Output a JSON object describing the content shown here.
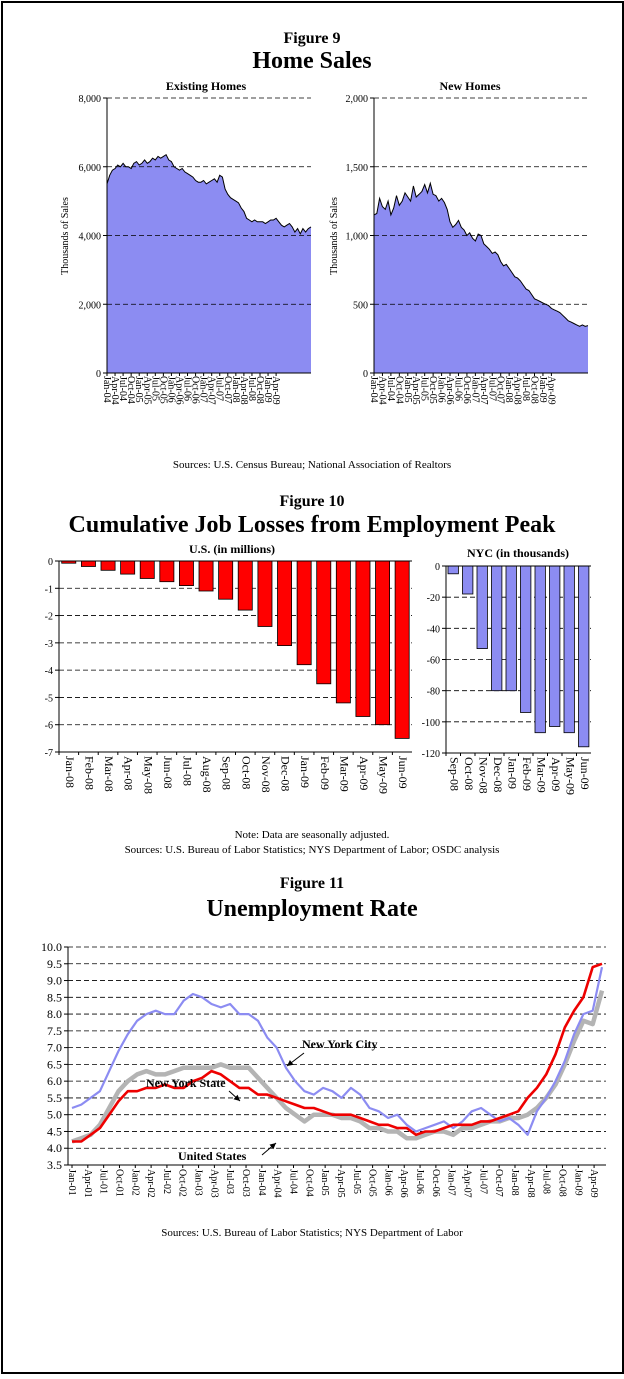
{
  "colors": {
    "blue_fill": "#8c8cf2",
    "red_bar": "#ff0000",
    "blue_bar": "#8c8cf2",
    "nyc_line": "#8c8cf2",
    "nys_line": "#b4b4b4",
    "us_line": "#ee0000"
  },
  "figures": {
    "fig9": {
      "label": "Figure 9",
      "title": "Home Sales",
      "sources": "Sources: U.S. Census Bureau; National Association of Realtors"
    },
    "fig10": {
      "label": "Figure 10",
      "title": "Cumulative Job Losses from Employment Peak",
      "note": "Note: Data are seasonally adjusted.",
      "sources": "Sources: U.S. Bureau of Labor Statistics; NYS Department of Labor; OSDC analysis"
    },
    "fig11": {
      "label": "Figure 11",
      "title": "Unemployment Rate",
      "sources": "Sources: U.S. Bureau of Labor Statistics; NYS Department of Labor"
    }
  },
  "chart_data": [
    {
      "id": "existing",
      "type": "area",
      "title": "Existing Homes",
      "ylabel": "Thousands of Sales",
      "ylim": [
        0,
        8000
      ],
      "yticks": [
        0,
        2000,
        4000,
        6000,
        8000
      ],
      "ytick_labels": [
        "0",
        "2,000",
        "4,000",
        "6,000",
        "8,000"
      ],
      "xtick_labels": [
        "Jan-04",
        "Apr-04",
        "Jul-04",
        "Oct-04",
        "Jan-05",
        "Apr-05",
        "Jul-05",
        "Oct-05",
        "Jan-06",
        "Apr-06",
        "Jul-06",
        "Oct-06",
        "Jan-07",
        "Apr-07",
        "Jul-07",
        "Oct-07",
        "Jan-08",
        "Apr-08",
        "Jul-08",
        "Oct-08",
        "Jan-09",
        "Apr-09"
      ],
      "grid": "horizontal dashed",
      "values": [
        5500,
        5750,
        5900,
        5950,
        6050,
        6000,
        6100,
        6000,
        6000,
        5950,
        6100,
        6150,
        6050,
        6100,
        6200,
        6100,
        6150,
        6250,
        6200,
        6300,
        6250,
        6300,
        6350,
        6200,
        6150,
        6000,
        5950,
        5900,
        5950,
        5850,
        5800,
        5750,
        5700,
        5600,
        5550,
        5550,
        5600,
        5500,
        5550,
        5600,
        5650,
        5550,
        5750,
        5700,
        5350,
        5200,
        5100,
        5050,
        5000,
        4950,
        4800,
        4700,
        4500,
        4450,
        4400,
        4450,
        4400,
        4400,
        4400,
        4350,
        4400,
        4450,
        4450,
        4500,
        4400,
        4300,
        4250,
        4300,
        4350,
        4250,
        4100,
        4200,
        4050,
        4200,
        4100,
        4200,
        4250
      ]
    },
    {
      "id": "new",
      "type": "area",
      "title": "New Homes",
      "ylabel": "Thousands of Sales",
      "ylim": [
        0,
        2000
      ],
      "yticks": [
        0,
        500,
        1000,
        1500,
        2000
      ],
      "ytick_labels": [
        "0",
        "500",
        "1,000",
        "1,500",
        "2,000"
      ],
      "xtick_labels": [
        "Jan-04",
        "Apr-04",
        "Jul-04",
        "Oct-04",
        "Jan-05",
        "Apr-05",
        "Jul-05",
        "Oct-05",
        "Jan-06",
        "Apr-06",
        "Jul-06",
        "Oct-06",
        "Jan-07",
        "Apr-07",
        "Jul-07",
        "Oct-07",
        "Jan-08",
        "Apr-08",
        "Jul-08",
        "Oct-08",
        "Jan-09",
        "Apr-09"
      ],
      "grid": "horizontal dashed",
      "values": [
        1150,
        1160,
        1270,
        1210,
        1190,
        1250,
        1150,
        1200,
        1290,
        1220,
        1250,
        1310,
        1280,
        1250,
        1360,
        1280,
        1300,
        1320,
        1370,
        1310,
        1380,
        1300,
        1290,
        1250,
        1270,
        1240,
        1190,
        1100,
        1060,
        1080,
        1110,
        1060,
        1040,
        1000,
        1020,
        980,
        960,
        1010,
        1000,
        940,
        920,
        900,
        870,
        880,
        860,
        810,
        780,
        790,
        760,
        730,
        700,
        690,
        670,
        640,
        610,
        600,
        570,
        540,
        530,
        520,
        510,
        500,
        490,
        470,
        460,
        450,
        440,
        420,
        400,
        380,
        370,
        360,
        350,
        340,
        350,
        340,
        345
      ]
    },
    {
      "id": "us_jobs",
      "type": "bar",
      "title": "U.S. (in millions)",
      "ylim": [
        -7,
        0
      ],
      "yticks": [
        0,
        -1,
        -2,
        -3,
        -4,
        -5,
        -6,
        -7
      ],
      "ytick_labels": [
        "0",
        "-1",
        "-2",
        "-3",
        "-4",
        "-5",
        "-6",
        "-7"
      ],
      "categories": [
        "Jan-08",
        "Feb-08",
        "Mar-08",
        "Apr-08",
        "May-08",
        "Jun-08",
        "Jul-08",
        "Aug-08",
        "Sep-08",
        "Oct-08",
        "Nov-08",
        "Dec-08",
        "Jan-09",
        "Feb-09",
        "Mar-09",
        "Apr-09",
        "May-09",
        "Jun-09"
      ],
      "values": [
        -0.08,
        -0.2,
        -0.34,
        -0.48,
        -0.64,
        -0.76,
        -0.9,
        -1.1,
        -1.4,
        -1.8,
        -2.4,
        -3.1,
        -3.8,
        -4.5,
        -5.2,
        -5.7,
        -6.0,
        -6.5
      ]
    },
    {
      "id": "nyc_jobs",
      "type": "bar",
      "title": "NYC (in thousands)",
      "ylim": [
        -120,
        0
      ],
      "yticks": [
        0,
        -20,
        -40,
        -60,
        -80,
        -100,
        -120
      ],
      "ytick_labels": [
        "0",
        "-20",
        "-40",
        "-60",
        "-80",
        "-100",
        "-120"
      ],
      "categories": [
        "Sep-08",
        "Oct-08",
        "Nov-08",
        "Dec-08",
        "Jan-09",
        "Feb-09",
        "Mar-09",
        "Apr-09",
        "May-09",
        "Jun-09"
      ],
      "values": [
        -5,
        -18,
        -53,
        -80,
        -80,
        -94,
        -107,
        -103,
        -107,
        -116
      ]
    },
    {
      "id": "unemployment",
      "type": "line",
      "ylim": [
        3.5,
        10.0
      ],
      "yticks": [
        3.5,
        4.0,
        4.5,
        5.0,
        5.5,
        6.0,
        6.5,
        7.0,
        7.5,
        8.0,
        8.5,
        9.0,
        9.5,
        10.0
      ],
      "ytick_labels": [
        "3.5",
        "4.0",
        "4.5",
        "5.0",
        "5.5",
        "6.0",
        "6.5",
        "7.0",
        "7.5",
        "8.0",
        "8.5",
        "9.0",
        "9.5",
        "10.0"
      ],
      "xtick_labels": [
        "Jan-01",
        "Apr-01",
        "Jul-01",
        "Oct-01",
        "Jan-02",
        "Apr-02",
        "Jul-02",
        "Oct-02",
        "Jan-03",
        "Apr-03",
        "Jul-03",
        "Oct-03",
        "Jan-04",
        "Apr-04",
        "Jul-04",
        "Oct-04",
        "Jan-05",
        "Apr-05",
        "Jul-05",
        "Oct-05",
        "Jan-06",
        "Apr-06",
        "Jul-06",
        "Oct-06",
        "Jan-07",
        "Apr-07",
        "Jul-07",
        "Oct-07",
        "Jan-08",
        "Apr-08",
        "Jul-08",
        "Oct-08",
        "Jan-09",
        "Apr-09"
      ],
      "series": [
        {
          "name": "New York City",
          "values": [
            5.2,
            5.3,
            5.5,
            5.7,
            6.3,
            6.9,
            7.4,
            7.8,
            8.0,
            8.1,
            8.0,
            8.0,
            8.4,
            8.6,
            8.5,
            8.3,
            8.2,
            8.3,
            8.0,
            8.0,
            7.8,
            7.3,
            7.0,
            6.4,
            6.0,
            5.7,
            5.6,
            5.8,
            5.7,
            5.5,
            5.8,
            5.6,
            5.2,
            5.1,
            4.9,
            5.0,
            4.7,
            4.5,
            4.6,
            4.7,
            4.8,
            4.6,
            4.8,
            5.1,
            5.2,
            5.0,
            4.8,
            4.9,
            4.7,
            4.4,
            5.1,
            5.5,
            6.0,
            6.6,
            7.4,
            8.0,
            8.1,
            9.4
          ]
        },
        {
          "name": "New York State",
          "values": [
            4.2,
            4.3,
            4.4,
            4.7,
            5.2,
            5.7,
            6.0,
            6.2,
            6.3,
            6.2,
            6.2,
            6.3,
            6.4,
            6.4,
            6.4,
            6.4,
            6.5,
            6.4,
            6.4,
            6.4,
            6.1,
            5.8,
            5.5,
            5.2,
            5.0,
            4.8,
            5.0,
            5.0,
            5.0,
            4.9,
            4.9,
            4.8,
            4.6,
            4.6,
            4.5,
            4.5,
            4.3,
            4.3,
            4.4,
            4.5,
            4.5,
            4.4,
            4.6,
            4.6,
            4.7,
            4.8,
            4.8,
            4.9,
            4.9,
            5.0,
            5.2,
            5.5,
            5.9,
            6.5,
            7.2,
            7.8,
            7.7,
            8.7
          ]
        },
        {
          "name": "United States",
          "values": [
            4.2,
            4.2,
            4.4,
            4.6,
            5.0,
            5.4,
            5.7,
            5.7,
            5.8,
            5.8,
            5.9,
            5.8,
            5.8,
            6.0,
            6.1,
            6.3,
            6.2,
            6.0,
            5.8,
            5.8,
            5.6,
            5.6,
            5.5,
            5.4,
            5.3,
            5.2,
            5.2,
            5.1,
            5.0,
            5.0,
            5.0,
            4.9,
            4.8,
            4.7,
            4.7,
            4.6,
            4.6,
            4.4,
            4.5,
            4.5,
            4.6,
            4.7,
            4.7,
            4.7,
            4.8,
            4.8,
            4.9,
            5.0,
            5.1,
            5.5,
            5.8,
            6.2,
            6.8,
            7.6,
            8.1,
            8.5,
            9.4,
            9.5
          ]
        }
      ],
      "annotations": [
        "New York City",
        "New York State",
        "United States"
      ]
    }
  ]
}
